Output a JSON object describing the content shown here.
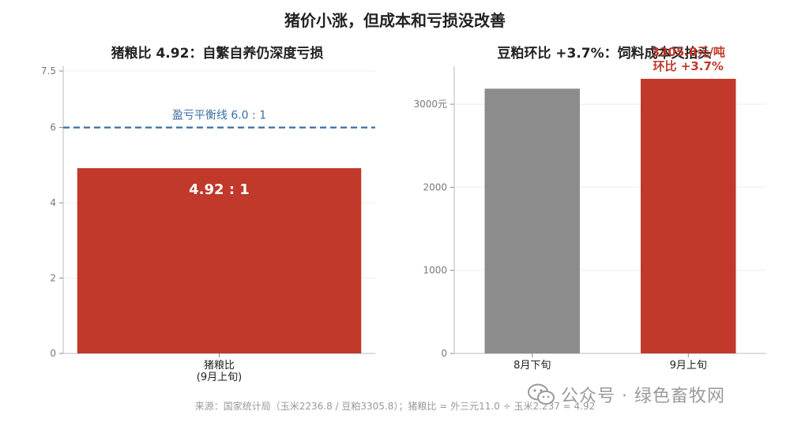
{
  "title": "猪价小涨，但成本和亏损没改善",
  "source_note": "来源：国家统计局（玉米2236.8 / 豆粕3305.8）；猪粮比 = 外三元11.0 ÷ 玉米2.237 ≈ 4.92",
  "watermark": {
    "text": "公众号 · 绿色畜牧网",
    "icon": "wechat-icon"
  },
  "colors": {
    "red": "#c0392b",
    "gray": "#8c8c8c",
    "blue": "#3a6ea5",
    "axis": "#888888",
    "grid": "#eeeeee"
  },
  "chart_data": [
    {
      "type": "bar",
      "title": "猪粮比 4.92：自繁自养仍深度亏损",
      "categories": [
        "猪粮比\n(9月上旬)"
      ],
      "series": [
        {
          "values": [
            4.92
          ]
        }
      ],
      "bar_colors": [
        "#c0392b"
      ],
      "ylim": [
        0,
        7.5
      ],
      "yticks": [
        0,
        2,
        4,
        6,
        7.5
      ],
      "ytick_labels": [
        "0",
        "2",
        "4",
        "6",
        "7.5"
      ],
      "data_labels": [
        "4.92 : 1"
      ],
      "reference_line": {
        "y": 6,
        "label": "盈亏平衡线 6.0 : 1",
        "color": "#3a6ea5",
        "style": "dashed"
      },
      "grid": true
    },
    {
      "type": "bar",
      "title": "豆粕环比 +3.7%：饲料成本又抬头",
      "categories": [
        "8月下旬",
        "9月上旬"
      ],
      "series": [
        {
          "values": [
            3187,
            3305.8
          ]
        }
      ],
      "bar_colors": [
        "#8c8c8c",
        "#c0392b"
      ],
      "ylim": [
        0,
        3400
      ],
      "yticks": [
        0,
        1000,
        2000,
        3000
      ],
      "ytick_labels": [
        "0",
        "1000",
        "2000",
        "3000元"
      ],
      "data_labels": [
        "",
        "3305.8元/吨\n环比 +3.7%"
      ],
      "grid": true
    }
  ]
}
